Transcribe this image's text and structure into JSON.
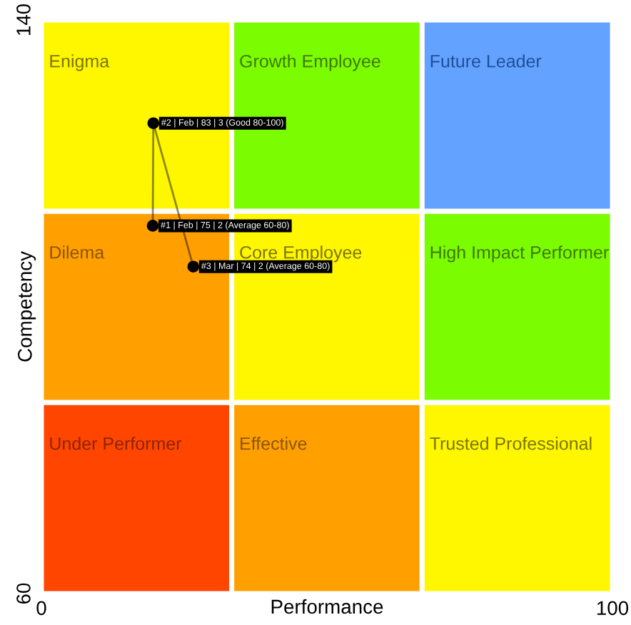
{
  "chart_data": {
    "type": "line",
    "xlabel": "Performance",
    "ylabel": "Competency",
    "xlim": [
      0,
      100
    ],
    "ylim": [
      60,
      140
    ],
    "xticks": [
      0,
      100
    ],
    "yticks": [
      60,
      140
    ],
    "marker": "circle",
    "line_style": "solid",
    "grid": false,
    "legend": false,
    "series": [
      {
        "color": "#000000",
        "x": [
          19.5,
          19.6,
          26.6
        ],
        "values": [
          111.3,
          125.6,
          105.6
        ]
      }
    ],
    "annotations": [
      "Under Performer",
      "Effective",
      "Trusted Professional",
      "Dilema",
      "Core Employee",
      "High Impact Performer",
      "Enigma",
      "Growth Employee",
      "Future Leader",
      {
        "text": "#1 | Feb | 75 | 2 (Average 60-80)",
        "x": 19.5,
        "y": 111.3
      },
      {
        "text": "#2 | Feb | 83 | 3 (Good 80-100)",
        "x": 19.6,
        "y": 125.6
      },
      {
        "text": "#3 | Mar | 74 | 2 (Average 60-80)",
        "x": 26.6,
        "y": 105.6
      }
    ]
  }
}
